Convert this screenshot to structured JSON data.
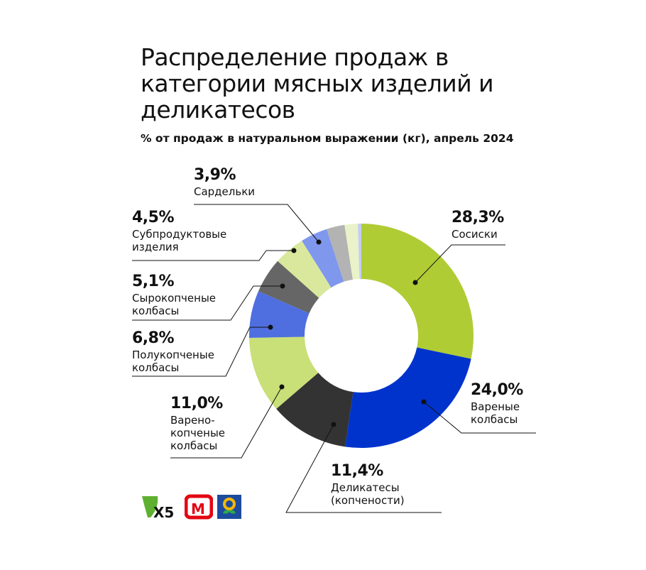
{
  "title": "Распределение продаж в категории мясных изделий и деликатесов",
  "subtitle": "% от продаж в натуральном выражении (кг), апрель 2024",
  "chart_data": {
    "type": "pie",
    "variant": "donut",
    "title": "Распределение продаж в категории мясных изделий и деликатесов",
    "subtitle": "% от продаж в натуральном выражении (кг), апрель 2024",
    "unit": "%",
    "slices": [
      {
        "label": "Сосиски",
        "value": 28.3,
        "value_label": "28,3%",
        "color": "#b0cc35"
      },
      {
        "label": "Вареные колбасы",
        "value": 24.0,
        "value_label": "24,0%",
        "color": "#0033cc"
      },
      {
        "label": "Деликатесы (копчености)",
        "value": 11.4,
        "value_label": "11,4%",
        "color": "#333333"
      },
      {
        "label": "Варено-копченые колбасы",
        "value": 11.0,
        "value_label": "11,0%",
        "color": "#c9df78"
      },
      {
        "label": "Полукопченые колбасы",
        "value": 6.8,
        "value_label": "6,8%",
        "color": "#4f6fe0"
      },
      {
        "label": "Сырокопченые колбасы",
        "value": 5.1,
        "value_label": "5,1%",
        "color": "#666666"
      },
      {
        "label": "Субпродуктовые изделия",
        "value": 4.5,
        "value_label": "4,5%",
        "color": "#d9e89c"
      },
      {
        "label": "Сардельки",
        "value": 3.9,
        "value_label": "3,9%",
        "color": "#7f97ec"
      },
      {
        "label": "",
        "value": 2.6,
        "value_label": "",
        "color": "#b3b3b3"
      },
      {
        "label": "",
        "value": 1.9,
        "value_label": "",
        "color": "#e9f2c8"
      },
      {
        "label": "",
        "value": 0.5,
        "value_label": "",
        "color": "#c5cdf5"
      }
    ]
  },
  "logos": [
    "X5",
    "М",
    "Пятёрочка"
  ]
}
